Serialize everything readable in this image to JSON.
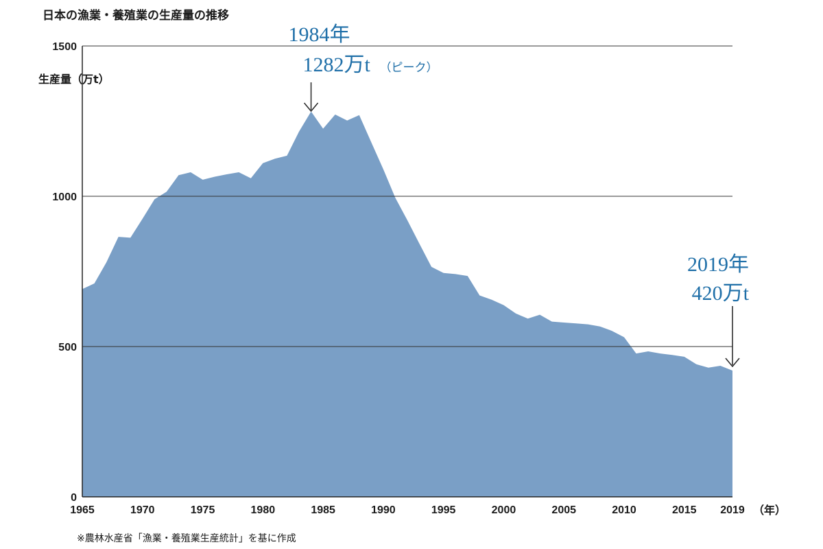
{
  "chart_data": {
    "type": "area",
    "title": "日本の漁業・養殖業の生産量の推移",
    "ylabel": "生産量（万t）",
    "xlabel_unit": "（年）",
    "source": "※農林水産省「漁業・養殖業生産統計」を基に作成",
    "ylim": [
      0,
      1500
    ],
    "xlim": [
      1965,
      2019
    ],
    "yticks": [
      0,
      500,
      1000,
      1500
    ],
    "xticks": [
      1965,
      1970,
      1975,
      1980,
      1985,
      1990,
      1995,
      2000,
      2005,
      2010,
      2015,
      2019
    ],
    "grid": "horizontal at 500, 1000, 1500",
    "fill_color": "#7a9fc6",
    "annotation_color": "#1f6fa8",
    "x": [
      1965,
      1966,
      1967,
      1968,
      1969,
      1970,
      1971,
      1972,
      1973,
      1974,
      1975,
      1976,
      1977,
      1978,
      1979,
      1980,
      1981,
      1982,
      1983,
      1984,
      1985,
      1986,
      1987,
      1988,
      1989,
      1990,
      1991,
      1992,
      1993,
      1994,
      1995,
      1996,
      1997,
      1998,
      1999,
      2000,
      2001,
      2002,
      2003,
      2004,
      2005,
      2006,
      2007,
      2008,
      2009,
      2010,
      2011,
      2012,
      2013,
      2014,
      2015,
      2016,
      2017,
      2018,
      2019
    ],
    "values": [
      691,
      710,
      780,
      865,
      862,
      925,
      990,
      1015,
      1070,
      1080,
      1055,
      1065,
      1073,
      1080,
      1060,
      1110,
      1125,
      1135,
      1215,
      1282,
      1225,
      1272,
      1252,
      1270,
      1180,
      1090,
      995,
      920,
      842,
      765,
      745,
      741,
      735,
      670,
      656,
      638,
      610,
      593,
      606,
      583,
      580,
      577,
      574,
      567,
      552,
      531,
      477,
      484,
      477,
      472,
      466,
      441,
      430,
      436,
      420
    ],
    "annotations": [
      {
        "year_label": "1984年",
        "value_label": "1282万t",
        "note": "（ピーク）",
        "x": 1984,
        "y": 1282
      },
      {
        "year_label": "2019年",
        "value_label": "420万t",
        "x": 2019,
        "y": 420
      }
    ]
  }
}
